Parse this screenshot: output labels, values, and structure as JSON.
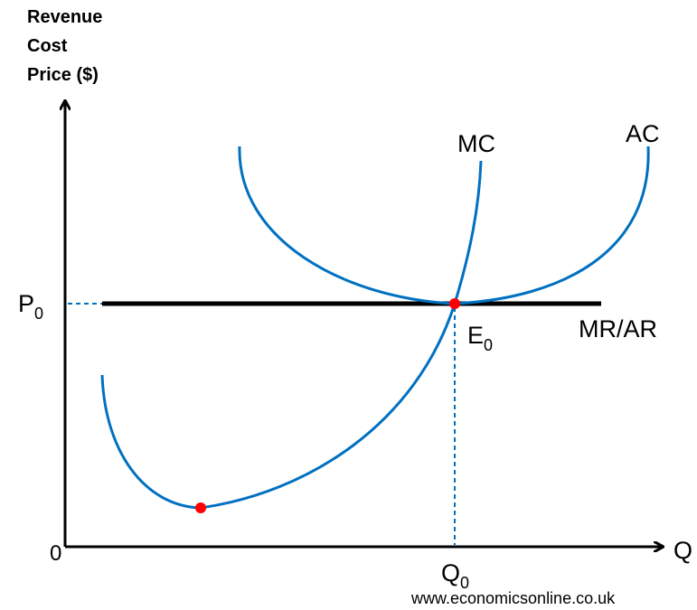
{
  "axis_title": {
    "lines": [
      "Revenue",
      "Cost",
      "Price ($)"
    ]
  },
  "curves": {
    "mc": "MC",
    "ac": "AC",
    "mr_ar": "MR/AR"
  },
  "labels": {
    "p0": {
      "main": "P",
      "sub": "0"
    },
    "e0": {
      "main": "E",
      "sub": "0"
    },
    "q0": {
      "main": "Q",
      "sub": "0"
    },
    "origin": "0",
    "x_axis": "Q"
  },
  "footer": "www.economicsonline.co.uk"
}
